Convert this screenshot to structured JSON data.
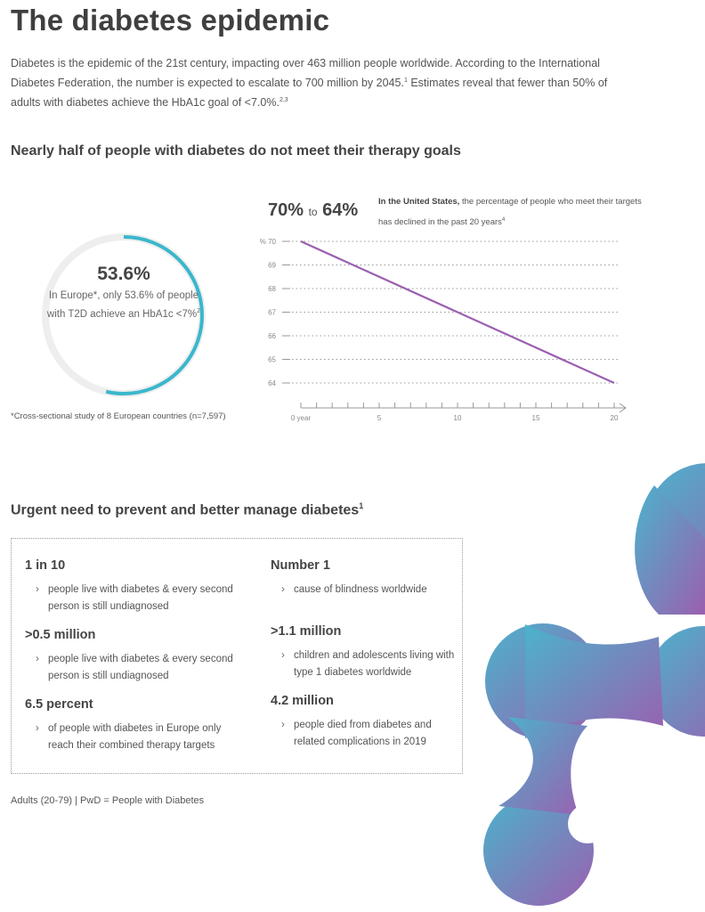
{
  "header": {
    "title": "The diabetes epidemic",
    "intro_part1": "Diabetes is the epidemic of the 21st century, impacting over 463 million people worldwide. According to the International Diabetes Federation, the number is expected to escalate to 700 million by 2045.",
    "intro_sup1": "1",
    "intro_part2": " Estimates reveal that fewer than 50% of adults with diabetes achieve the HbA1c goal of <7.0%.",
    "intro_sup2": "2,3"
  },
  "section1": {
    "heading": "Nearly half of people with diabetes do not meet their therapy goals",
    "ring": {
      "value": "53.6%",
      "percent": 53.6,
      "desc_part1": "In Europe*, only 53.6% of people with T2D achieve an HbA1c <7%",
      "desc_sup": "2",
      "track_color": "#eeeeee",
      "fill_color": "#3ab7cc"
    },
    "footnote": "*Cross-sectional study of 8 European countries (n=7,597)",
    "range_from": "70%",
    "range_to_word": "to",
    "range_to": "64%",
    "us_bold": "In the United States,",
    "us_text": " the percentage of people who meet their targets has declined in the past 20 years",
    "us_sup": "4"
  },
  "chart_data": {
    "type": "line",
    "title": "",
    "xlabel": "year",
    "ylabel": "%",
    "x": [
      0,
      20
    ],
    "series": [
      {
        "values": [
          70,
          64
        ],
        "color": "#9b5fb0"
      }
    ],
    "ylim": [
      64,
      70
    ],
    "xlim": [
      0,
      20
    ],
    "y_ticks": [
      70,
      69,
      68,
      67,
      66,
      65,
      64
    ],
    "y_tick_labels": [
      "% 70",
      "69",
      "68",
      "67",
      "66",
      "65",
      "64"
    ],
    "x_ticks": [
      0,
      5,
      10,
      15,
      20
    ],
    "x_tick_labels": [
      "0 year",
      "5",
      "10",
      "15",
      "20"
    ],
    "x_minor_ticks": [
      0,
      1,
      2,
      3,
      4,
      5,
      6,
      7,
      8,
      9,
      10,
      11,
      12,
      13,
      14,
      15,
      16,
      17,
      18,
      19,
      20
    ],
    "grid": "horizontal dotted"
  },
  "section2": {
    "heading": "Urgent need to prevent and better manage diabetes",
    "heading_sup": "1",
    "chevron": "›",
    "stats": [
      {
        "title": "1 in 10",
        "text": "people live with diabetes & every second person is still undiagnosed"
      },
      {
        "title": ">0.5 million",
        "text": "people live with diabetes & every second person is still undiagnosed"
      },
      {
        "title": "6.5 percent",
        "text": "of people with diabetes in Europe only reach their combined therapy targets"
      },
      {
        "title": "Number 1",
        "text": "cause of blindness worldwide"
      },
      {
        "title": ">1.1 million",
        "text": "children and adolescents living with type 1 diabetes worldwide"
      },
      {
        "title": "4.2 million",
        "text": "people died from diabetes and related complications in 2019"
      }
    ],
    "note": "Adults (20-79) | PwD = People with Diabetes"
  },
  "decoration": {
    "gradient_start": "#4bb3cc",
    "gradient_end": "#9b5fb0"
  }
}
